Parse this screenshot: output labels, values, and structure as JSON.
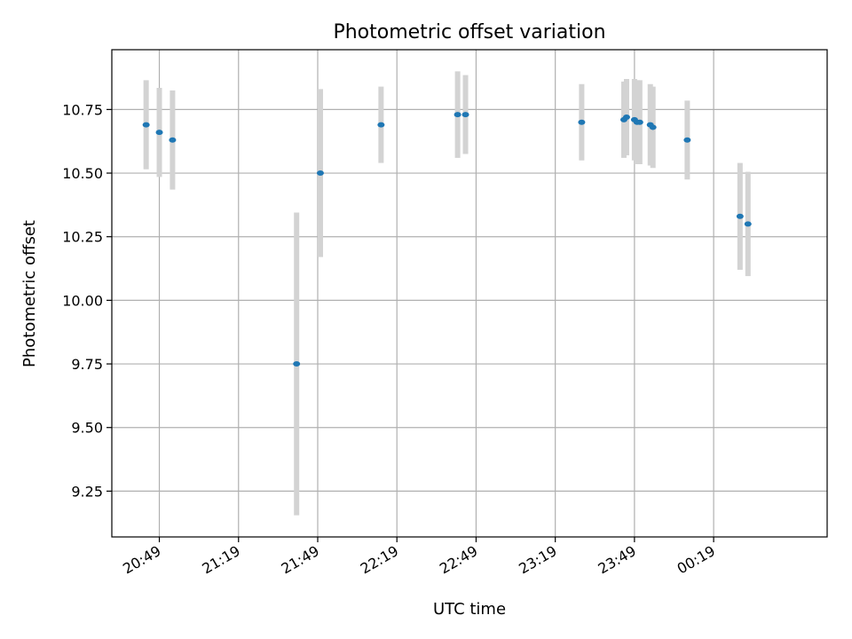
{
  "chart_data": {
    "type": "scatter",
    "title": "Photometric offset variation",
    "xlabel": "UTC time",
    "ylabel": "Photometric offset",
    "grid": true,
    "legend": false,
    "xlim": [
      "20:31",
      "01:02"
    ],
    "ylim": [
      9.07,
      10.985
    ],
    "x_ticks": [
      "20:49",
      "21:19",
      "21:49",
      "22:19",
      "22:49",
      "23:19",
      "23:49",
      "00:19"
    ],
    "y_ticks": [
      "9.25",
      "9.50",
      "9.75",
      "10.00",
      "10.25",
      "10.50",
      "10.75"
    ],
    "colors": {
      "point": "#1f77b4",
      "errorbar": "#d3d3d3",
      "grid": "#b0b0b0"
    },
    "points": [
      {
        "x": "20:44",
        "y": 10.69,
        "yerr": 0.175
      },
      {
        "x": "20:49",
        "y": 10.66,
        "yerr": 0.175
      },
      {
        "x": "20:54",
        "y": 10.63,
        "yerr": 0.195
      },
      {
        "x": "21:41",
        "y": 9.75,
        "yerr": 0.595
      },
      {
        "x": "21:50",
        "y": 10.5,
        "yerr": 0.33
      },
      {
        "x": "22:13",
        "y": 10.69,
        "yerr": 0.15
      },
      {
        "x": "22:42",
        "y": 10.73,
        "yerr": 0.17
      },
      {
        "x": "22:45",
        "y": 10.73,
        "yerr": 0.155
      },
      {
        "x": "23:29",
        "y": 10.7,
        "yerr": 0.15
      },
      {
        "x": "23:45",
        "y": 10.71,
        "yerr": 0.15
      },
      {
        "x": "23:46",
        "y": 10.72,
        "yerr": 0.15
      },
      {
        "x": "23:49",
        "y": 10.71,
        "yerr": 0.16
      },
      {
        "x": "23:50",
        "y": 10.7,
        "yerr": 0.165
      },
      {
        "x": "23:51",
        "y": 10.7,
        "yerr": 0.165
      },
      {
        "x": "23:55",
        "y": 10.69,
        "yerr": 0.16
      },
      {
        "x": "23:56",
        "y": 10.68,
        "yerr": 0.16
      },
      {
        "x": "00:09",
        "y": 10.63,
        "yerr": 0.155
      },
      {
        "x": "00:29",
        "y": 10.33,
        "yerr": 0.21
      },
      {
        "x": "00:32",
        "y": 10.3,
        "yerr": 0.205
      }
    ]
  }
}
